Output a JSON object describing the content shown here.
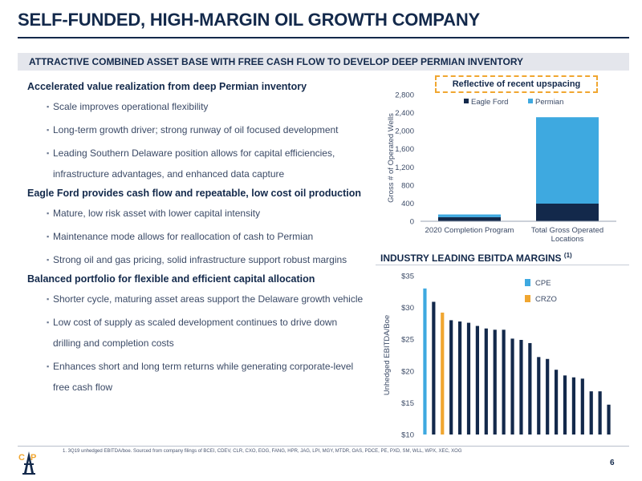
{
  "title": "SELF-FUNDED, HIGH-MARGIN OIL GROWTH COMPANY",
  "banner": "ATTRACTIVE COMBINED ASSET BASE WITH FREE CASH FLOW TO DEVELOP DEEP PERMIAN INVENTORY",
  "sections": [
    {
      "heading": "Accelerated value realization from deep Permian inventory",
      "bullets": [
        [
          "Scale improves operational flexibility"
        ],
        [
          "Long-term growth driver; strong runway of oil focused development"
        ],
        [
          "Leading Southern Delaware position allows for capital efficiencies,",
          "infrastructure advantages, and enhanced data capture"
        ]
      ]
    },
    {
      "heading": "Eagle Ford provides cash flow and repeatable, low cost oil production",
      "bullets": [
        [
          "Mature, low risk asset with lower capital intensity"
        ],
        [
          "Maintenance mode allows for reallocation of cash to Permian"
        ],
        [
          "Strong oil and gas pricing, solid infrastructure support robust margins"
        ]
      ]
    },
    {
      "heading": "Balanced portfolio for flexible and efficient capital allocation",
      "bullets": [
        [
          "Shorter cycle, maturing asset areas support the Delaware growth vehicle"
        ],
        [
          "Low cost of supply as scaled development continues to drive down",
          "drilling and completion costs"
        ],
        [
          "Enhances short and long term returns while generating corporate-level",
          "free cash flow"
        ]
      ]
    }
  ],
  "upspacing_note": "Reflective of recent upspacing",
  "ebitda_title": "INDUSTRY LEADING EBITDA MARGINS",
  "ebitda_footnote_marker": "(1)",
  "footnote": "1.   3Q19 unhedged EBITDA/boe. Sourced from company filings of BCEI, CDEV, CLR, CXO, EOG, FANG, HPR, JAG, LPI, MGY, MTDR, OAS, PDCE, PE, PXD, SM, WLL, WPX, XEC, XOG",
  "page_number": "6",
  "colors": {
    "navy": "#13294b",
    "light_blue": "#3ea9e0",
    "orange": "#f0a630"
  },
  "chart_data": [
    {
      "type": "bar",
      "stacked": true,
      "categories": [
        "2020 Completion Program",
        "Total Gross Operated Locations"
      ],
      "category_lines": [
        [
          "2020 Completion Program"
        ],
        [
          "Total Gross Operated",
          "Locations"
        ]
      ],
      "series": [
        {
          "name": "Eagle Ford",
          "color": "#13294b",
          "values": [
            90,
            390
          ]
        },
        {
          "name": "Permian",
          "color": "#3ea9e0",
          "values": [
            60,
            1910
          ]
        }
      ],
      "ylabel": "Gross # of Operated Wells",
      "ylim": [
        0,
        2800
      ],
      "yticks": [
        0,
        400,
        800,
        1200,
        1600,
        2000,
        2400,
        2800
      ],
      "ytick_labels": [
        "0",
        "400",
        "800",
        "1,200",
        "1,600",
        "2,000",
        "2,400",
        "2,800"
      ],
      "legend": "top",
      "grid": false
    },
    {
      "type": "bar",
      "values": [
        33.0,
        30.9,
        29.2,
        28.0,
        27.8,
        27.6,
        27.1,
        26.7,
        26.5,
        26.5,
        25.1,
        24.9,
        24.4,
        22.2,
        21.9,
        20.2,
        19.3,
        19.0,
        18.8,
        16.8,
        16.8,
        14.7
      ],
      "highlight": {
        "0": "CPE",
        "2": "CRZO"
      },
      "legend_entries": [
        {
          "name": "CPE",
          "color": "#3ea9e0"
        },
        {
          "name": "CRZO",
          "color": "#f0a630"
        }
      ],
      "bar_color": "#13294b",
      "ylabel": "Unhedged EBITDA/Boe",
      "ylim": [
        10,
        35
      ],
      "yticks": [
        10,
        15,
        20,
        25,
        30,
        35
      ],
      "ytick_labels": [
        "$10",
        "$15",
        "$20",
        "$25",
        "$30",
        "$35"
      ],
      "legend": "top-right",
      "grid": false
    }
  ]
}
